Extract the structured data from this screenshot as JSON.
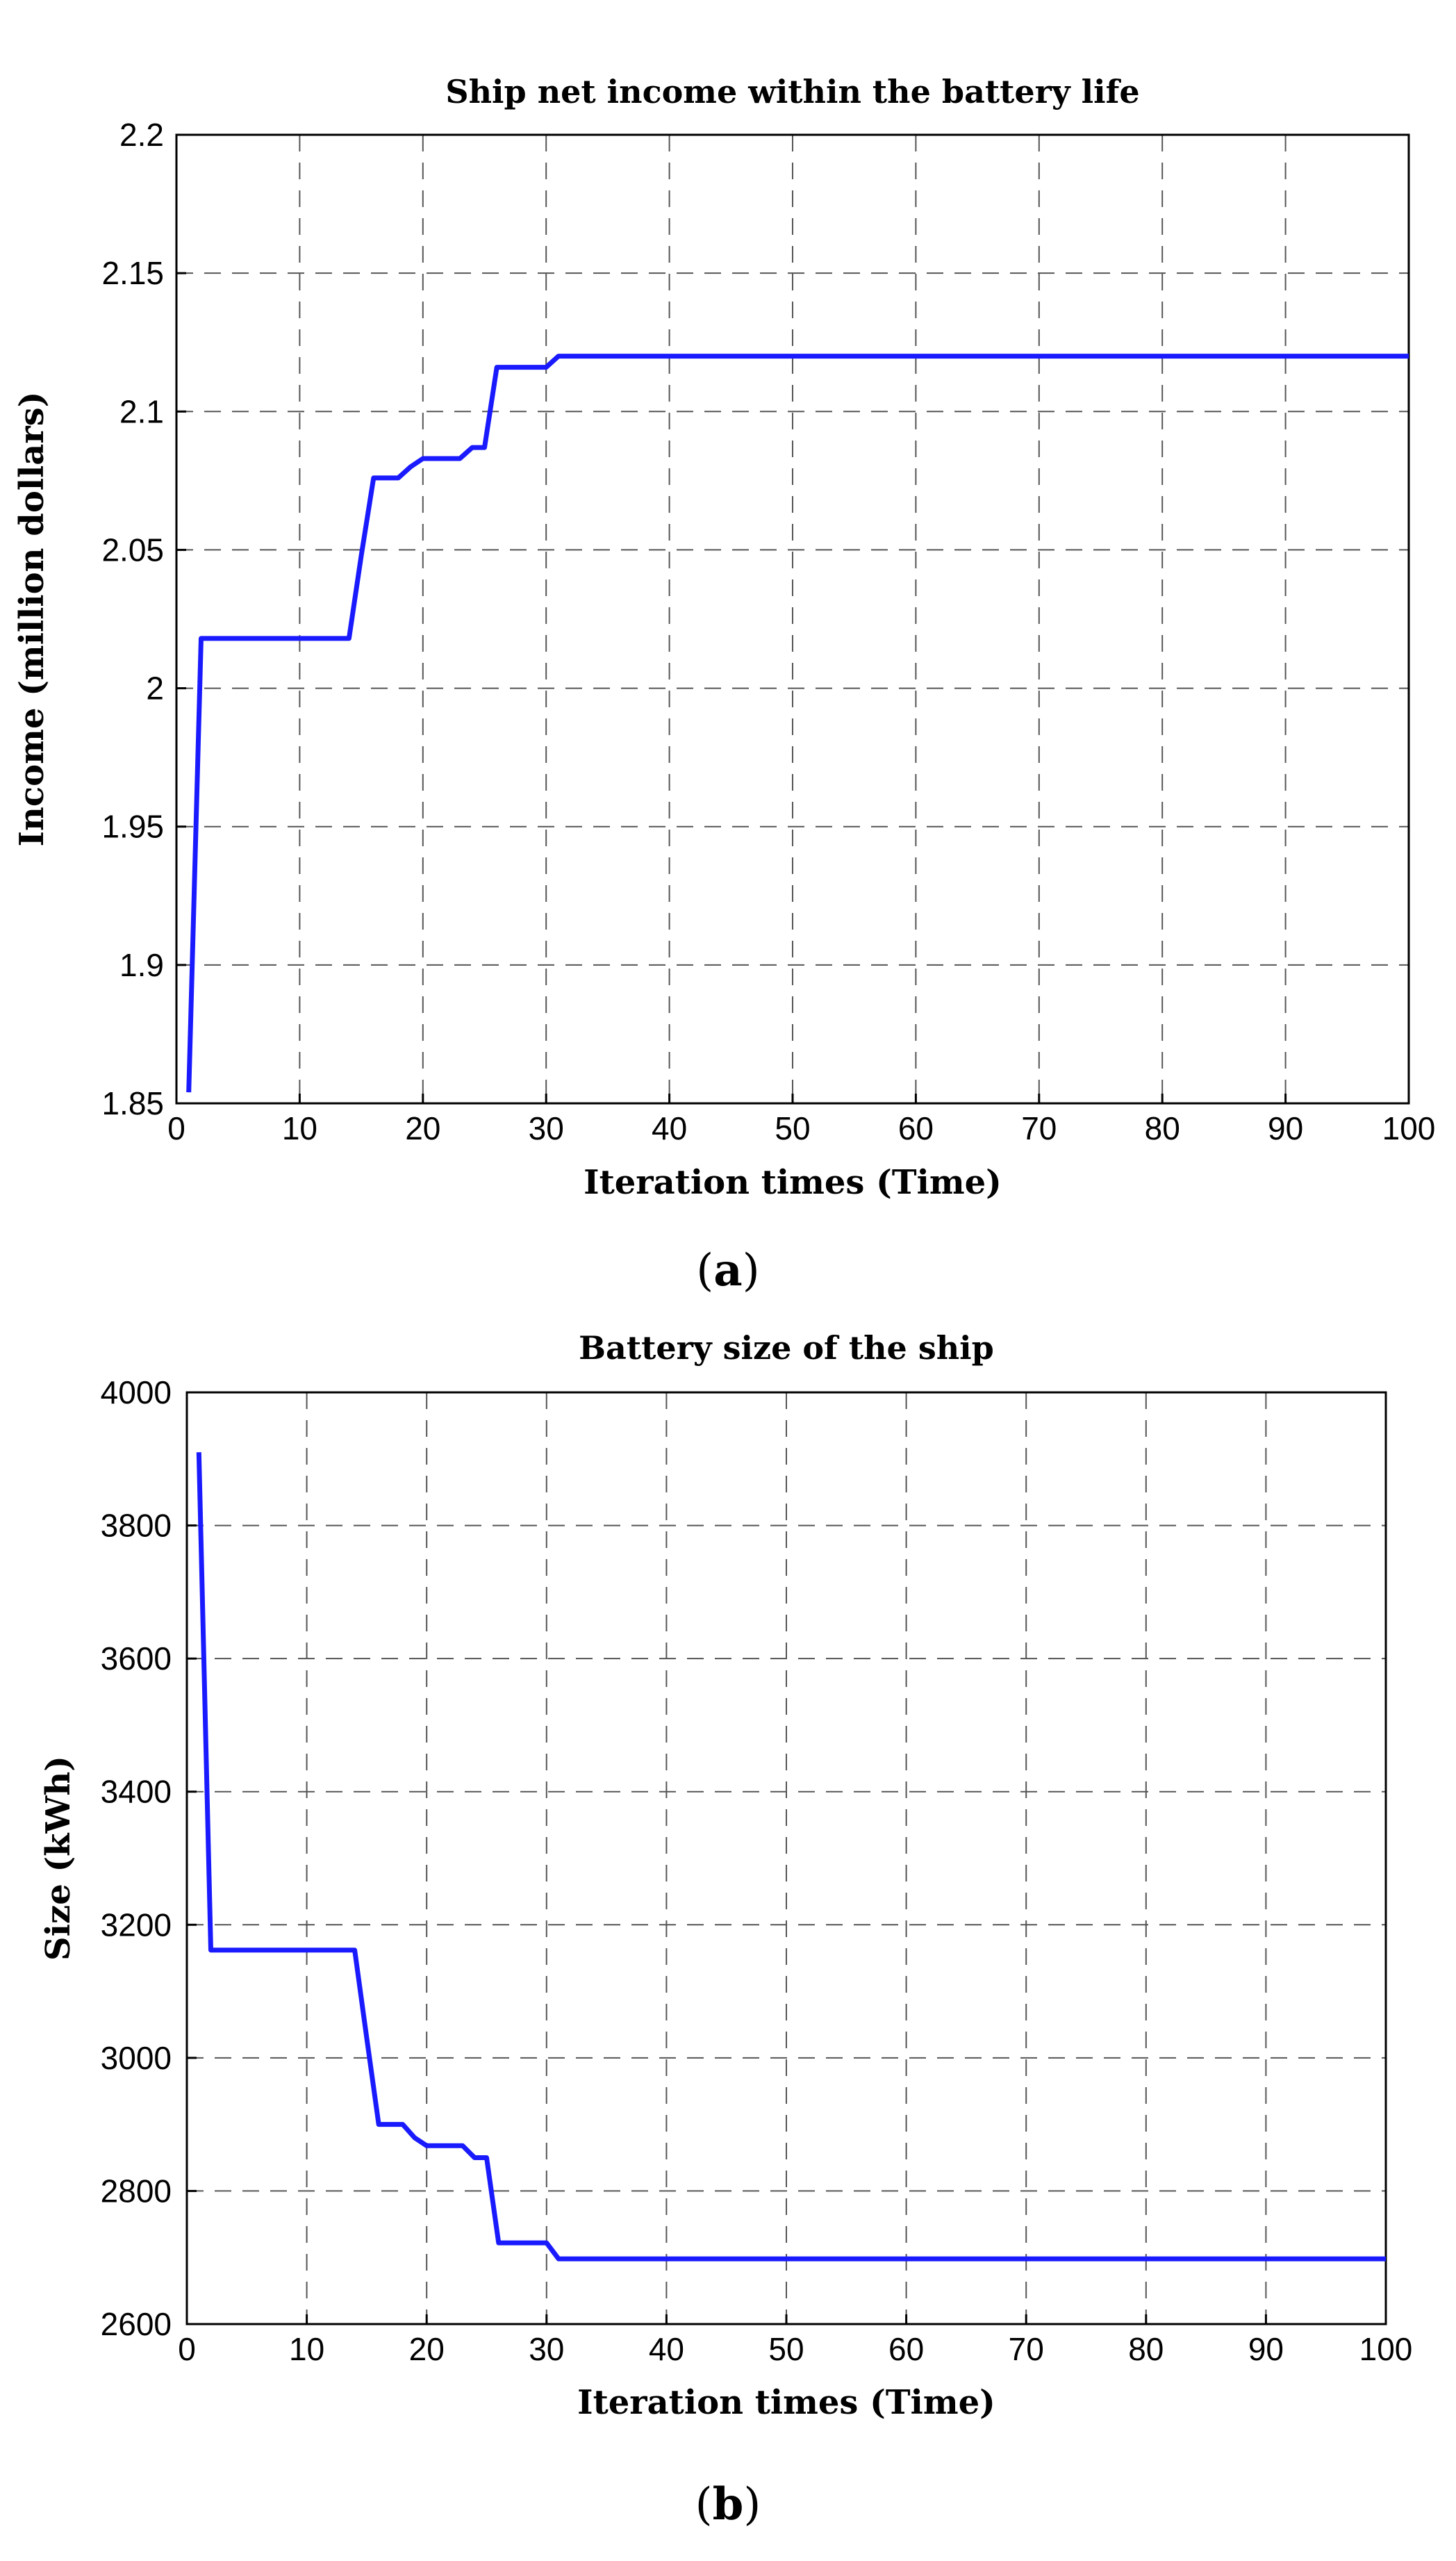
{
  "chart_data": [
    {
      "type": "line",
      "title": "Ship net income within the battery life",
      "xlabel": "Iteration times (Time)",
      "ylabel": "Income (million dollars)",
      "xlim": [
        0,
        100
      ],
      "ylim": [
        1.85,
        2.2
      ],
      "xticks": [
        "0",
        "10",
        "20",
        "30",
        "40",
        "50",
        "60",
        "70",
        "80",
        "90",
        "100"
      ],
      "yticks": [
        "1.85",
        "1.9",
        "1.95",
        "2",
        "2.05",
        "2.1",
        "2.15",
        "2.2"
      ],
      "grid": true,
      "color": "#1a1aff",
      "caption_letter": "a",
      "x": [
        1,
        2,
        14,
        15,
        16,
        18,
        19,
        20,
        23,
        24,
        25,
        26,
        30,
        31,
        100
      ],
      "y": [
        1.854,
        2.018,
        2.018,
        2.048,
        2.076,
        2.076,
        2.08,
        2.083,
        2.083,
        2.087,
        2.087,
        2.116,
        2.116,
        2.12,
        2.12
      ]
    },
    {
      "type": "line",
      "title": "Battery size of the ship",
      "xlabel": "Iteration times (Time)",
      "ylabel": "Size (kWh)",
      "xlim": [
        0,
        100
      ],
      "ylim": [
        2600,
        4000
      ],
      "xticks": [
        "0",
        "10",
        "20",
        "30",
        "40",
        "50",
        "60",
        "70",
        "80",
        "90",
        "100"
      ],
      "yticks": [
        "2600",
        "2800",
        "3000",
        "3200",
        "3400",
        "3600",
        "3800",
        "4000"
      ],
      "grid": true,
      "color": "#1a1aff",
      "caption_letter": "b",
      "x": [
        1,
        2,
        14,
        15,
        16,
        18,
        19,
        20,
        23,
        24,
        25,
        26,
        30,
        31,
        100
      ],
      "y": [
        3910,
        3162,
        3162,
        3030,
        2900,
        2900,
        2880,
        2868,
        2868,
        2850,
        2850,
        2722,
        2722,
        2698,
        2698
      ]
    }
  ]
}
